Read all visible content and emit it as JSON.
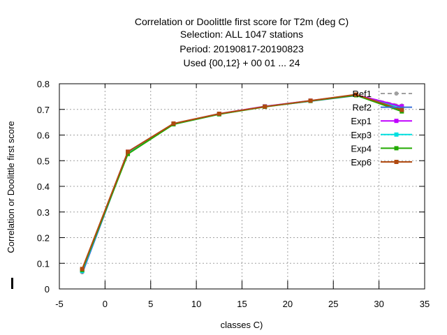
{
  "chart_data": {
    "type": "line",
    "title_lines": [
      "Correlation or Doolittle first score  for T2m (deg C)",
      "Selection: ALL    1047 stations",
      "Period: 20190817-20190823",
      "Used {00,12} + 00 01 ... 24"
    ],
    "xlabel": "classes C)",
    "ylabel": "Correlation or Doolittle first score",
    "xlim": [
      -5,
      35
    ],
    "ylim": [
      0,
      0.8
    ],
    "xticks": [
      "-5",
      "0",
      "5",
      "10",
      "15",
      "20",
      "25",
      "30",
      "35"
    ],
    "yticks": [
      "0",
      "0.1",
      "0.2",
      "0.3",
      "0.4",
      "0.5",
      "0.6",
      "0.7",
      "0.8"
    ],
    "grid": true,
    "legend_position": "top-right",
    "x": [
      -2.5,
      2.5,
      7.5,
      12.5,
      17.5,
      22.5,
      27.5,
      32.5
    ],
    "series": [
      {
        "name": "Ref1",
        "color": "#a0a0a0",
        "dashed": true,
        "marker": "circle",
        "values": [
          0.065,
          0.53,
          0.643,
          0.682,
          0.712,
          0.733,
          0.755,
          0.715
        ]
      },
      {
        "name": "Ref2",
        "color": "#3a6fd8",
        "dashed": false,
        "marker": "none",
        "values": [
          0.06,
          0.532,
          0.643,
          0.682,
          0.711,
          0.732,
          0.754,
          0.71
        ]
      },
      {
        "name": "Exp1",
        "color": "#c000ff",
        "dashed": false,
        "marker": "plus",
        "values": [
          0.073,
          0.535,
          0.644,
          0.683,
          0.712,
          0.734,
          0.757,
          0.712
        ]
      },
      {
        "name": "Exp3",
        "color": "#00e0e0",
        "dashed": false,
        "marker": "plus",
        "values": [
          0.07,
          0.53,
          0.642,
          0.681,
          0.711,
          0.733,
          0.756,
          0.702
        ]
      },
      {
        "name": "Exp4",
        "color": "#22aa00",
        "dashed": false,
        "marker": "plus",
        "values": [
          0.074,
          0.526,
          0.642,
          0.681,
          0.71,
          0.733,
          0.755,
          0.692
        ]
      },
      {
        "name": "Exp6",
        "color": "#b04a10",
        "dashed": false,
        "marker": "plus",
        "values": [
          0.078,
          0.535,
          0.645,
          0.683,
          0.711,
          0.734,
          0.758,
          0.698
        ]
      }
    ]
  }
}
